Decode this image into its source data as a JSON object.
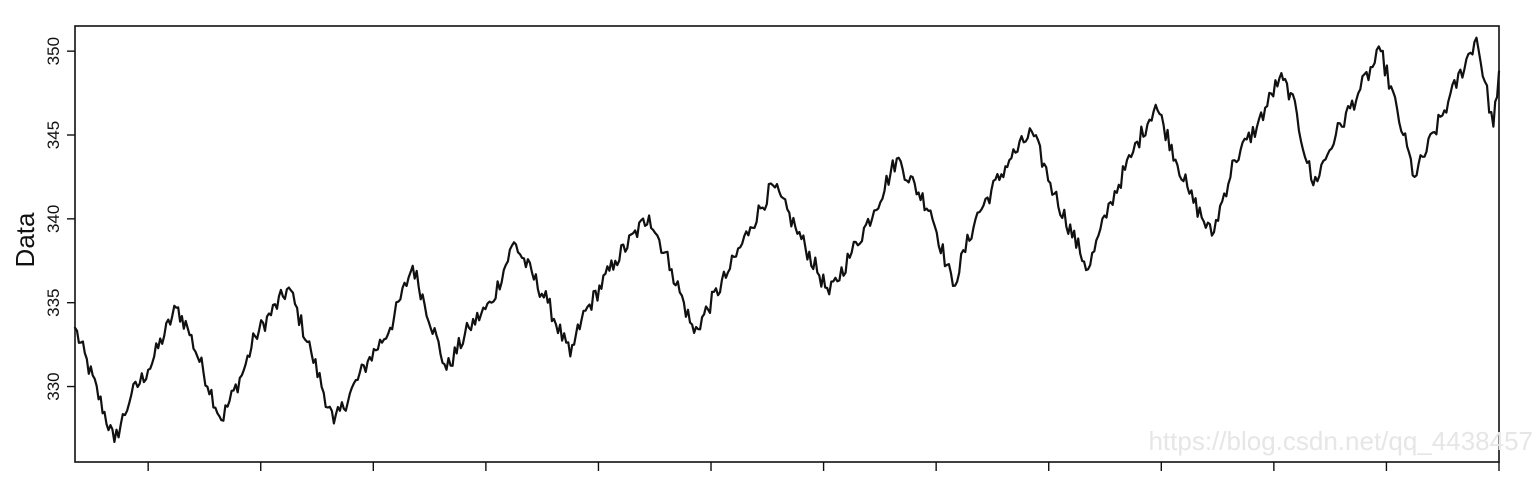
{
  "chart_data": {
    "type": "line",
    "title": "",
    "xlabel": "",
    "ylabel": "Data",
    "ylim": [
      325.5,
      351.5
    ],
    "xlim": [
      0,
      12.65
    ],
    "yticks": [
      330,
      335,
      340,
      345,
      350
    ],
    "ytick_labels": [
      "330",
      "335",
      "340",
      "345",
      "350"
    ],
    "xticks": [
      0.65,
      1.65,
      2.65,
      3.65,
      4.65,
      5.65,
      6.65,
      7.65,
      8.65,
      9.65,
      10.65,
      11.65,
      12.65
    ],
    "grid": false,
    "legend": "none",
    "line_color": "#111111",
    "series": [
      {
        "x": [
          0.0,
          0.35,
          0.5,
          0.65,
          0.9,
          1.0,
          1.3,
          1.5,
          1.6,
          1.9,
          2.1,
          2.3,
          2.6,
          2.8,
          3.0,
          3.3,
          3.5,
          3.7,
          3.9,
          4.2,
          4.4,
          4.5,
          4.8,
          5.1,
          5.3,
          5.5,
          5.8,
          6.0,
          6.2,
          6.4,
          6.7,
          6.9,
          7.1,
          7.3,
          7.6,
          7.8,
          8.0,
          8.3,
          8.5,
          8.7,
          9.0,
          9.2,
          9.4,
          9.6,
          9.9,
          10.1,
          10.3,
          10.5,
          10.7,
          10.8,
          11.0,
          11.2,
          11.4,
          11.6,
          11.8,
          11.9,
          12.2,
          12.45,
          12.6,
          12.65
        ],
        "values": [
          333.5,
          326.7,
          329.5,
          331.0,
          334.7,
          333.5,
          328.0,
          331.0,
          333.0,
          335.9,
          332.0,
          327.8,
          331.5,
          333.5,
          337.2,
          331.0,
          333.5,
          335.0,
          338.6,
          335.0,
          331.8,
          334.0,
          337.5,
          340.2,
          337.0,
          333.2,
          336.8,
          339.5,
          342.0,
          339.5,
          335.5,
          338.0,
          340.5,
          343.6,
          340.5,
          336.0,
          340.0,
          343.5,
          345.2,
          341.5,
          337.0,
          341.0,
          344.0,
          346.8,
          341.5,
          339.0,
          343.5,
          345.5,
          348.4,
          347.5,
          342.0,
          345.0,
          347.5,
          350.0,
          345.0,
          342.5,
          347.0,
          350.8,
          345.5,
          348.8
        ]
      }
    ]
  },
  "watermark": "https://blog.csdn.net/qq_4438457"
}
